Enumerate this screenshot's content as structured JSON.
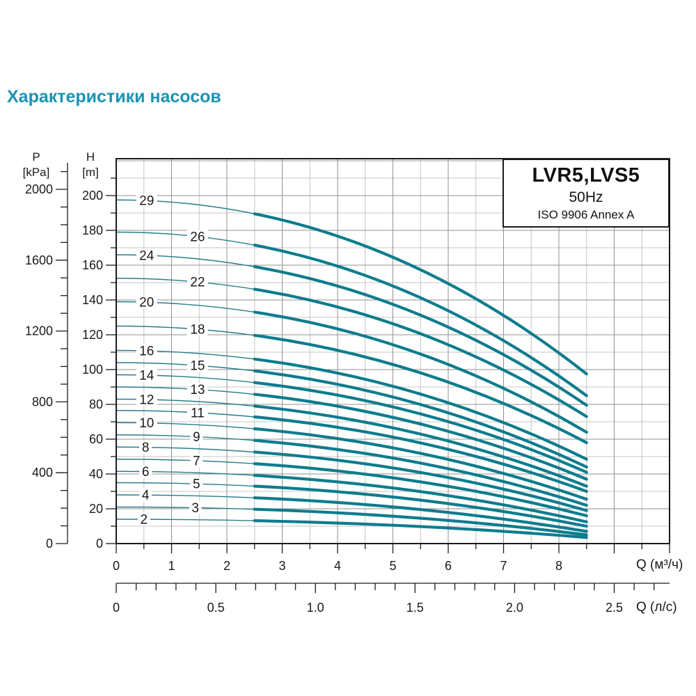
{
  "title": {
    "text": "Характеристики насосов",
    "color": "#1b93b3"
  },
  "chart_data": {
    "type": "line",
    "title": "LVR5,LVS5 pump performance curves",
    "legend_box": {
      "model": "LVR5,LVS5",
      "frequency": "50Hz",
      "standard": "ISO 9906 Annex A"
    },
    "axes": {
      "pressure": {
        "name": "P",
        "unit": "[kPa]",
        "min": 0,
        "max": 2100,
        "minor_step": 100,
        "label_step": 400,
        "tick_labels": [
          "0",
          "400",
          "800",
          "1200",
          "1600",
          "2000"
        ]
      },
      "head": {
        "name": "H",
        "unit": "[m]",
        "min": 0,
        "max": 220,
        "minor_step": 10,
        "label_step": 20,
        "tick_labels": [
          "0",
          "20",
          "40",
          "60",
          "80",
          "100",
          "120",
          "140",
          "160",
          "180",
          "200"
        ]
      },
      "flow_m3h": {
        "name": "Q (м³/ч)",
        "min": 0,
        "max": 10,
        "minor_step": 0.5,
        "label_step": 1,
        "tick_labels": [
          "0",
          "1",
          "2",
          "3",
          "4",
          "5",
          "6",
          "7",
          "8"
        ]
      },
      "flow_ls": {
        "name": "Q (л/с)",
        "min": 0,
        "max": 2.7,
        "minor_step": 0.1,
        "label_step": 0.5,
        "tick_labels": [
          "0",
          "0.5",
          "1.0",
          "1.5",
          "2.0",
          "2.5"
        ]
      }
    },
    "curve_start_q": 0,
    "curve_end_q": 8.5,
    "operating_range_start_q": 2.5,
    "curves": [
      {
        "stages": "29",
        "h0": 197.5,
        "h_end": 97.5,
        "label_q": 0.55
      },
      {
        "stages": "26",
        "h0": 179.0,
        "h_end": 85.0,
        "label_q": 1.47
      },
      {
        "stages": "24",
        "h0": 166.0,
        "h_end": 79.5,
        "label_q": 0.55
      },
      {
        "stages": "22",
        "h0": 152.5,
        "h_end": 73.0,
        "label_q": 1.47
      },
      {
        "stages": "20",
        "h0": 139.0,
        "h_end": 64.0,
        "label_q": 0.55
      },
      {
        "stages": "18",
        "h0": 125.0,
        "h_end": 58.0,
        "label_q": 1.47
      },
      {
        "stages": "16",
        "h0": 111.0,
        "h_end": 48.5,
        "label_q": 0.55
      },
      {
        "stages": "15",
        "h0": 104.0,
        "h_end": 44.0,
        "label_q": 1.47
      },
      {
        "stages": "14",
        "h0": 97.0,
        "h_end": 41.0,
        "label_q": 0.55
      },
      {
        "stages": "13",
        "h0": 90.0,
        "h_end": 37.0,
        "label_q": 1.47
      },
      {
        "stages": "12",
        "h0": 83.0,
        "h_end": 33.0,
        "label_q": 0.55
      },
      {
        "stages": "11",
        "h0": 76.5,
        "h_end": 30.0,
        "label_q": 1.47
      },
      {
        "stages": "10",
        "h0": 69.5,
        "h_end": 25.5,
        "label_q": 0.55
      },
      {
        "stages": "9",
        "h0": 62.5,
        "h_end": 22.0,
        "label_q": 1.45
      },
      {
        "stages": "8",
        "h0": 55.5,
        "h_end": 19.0,
        "label_q": 0.53
      },
      {
        "stages": "7",
        "h0": 48.5,
        "h_end": 16.0,
        "label_q": 1.45
      },
      {
        "stages": "6",
        "h0": 41.5,
        "h_end": 12.5,
        "label_q": 0.53
      },
      {
        "stages": "5",
        "h0": 35.0,
        "h_end": 10.0,
        "label_q": 1.45
      },
      {
        "stages": "4",
        "h0": 28.0,
        "h_end": 7.0,
        "label_q": 0.53
      },
      {
        "stages": "3",
        "h0": 21.0,
        "h_end": 5.0,
        "label_q": 1.43
      },
      {
        "stages": "2",
        "h0": 14.0,
        "h_end": 3.5,
        "label_q": 0.5
      }
    ],
    "colors": {
      "curve_thick": "#0d7c8d",
      "curve_thin": "#257d89",
      "grid_major": "#909090",
      "grid_minor": "#c6c6c6",
      "frame": "#1a1a1a",
      "text": "#1a1a1a"
    }
  }
}
